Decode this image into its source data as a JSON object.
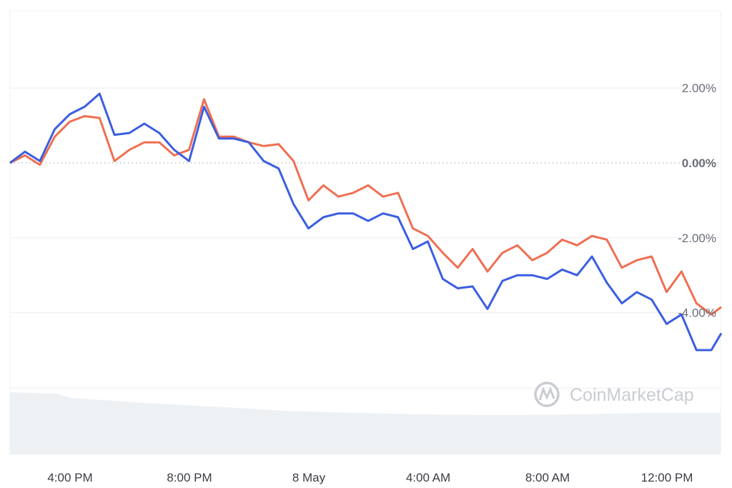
{
  "chart_data": {
    "type": "line",
    "title": "",
    "xlabel": "",
    "ylabel": "",
    "ylim": [
      -6,
      3
    ],
    "y_ticks": [
      "2.00%",
      "0.00%",
      "-2.00%",
      "-4.00%"
    ],
    "y_tick_values": [
      2,
      0,
      -2,
      -4
    ],
    "x_ticks": [
      "4:00 PM",
      "8:00 PM",
      "8 May",
      "4:00 AM",
      "8:00 AM",
      "12:00 PM"
    ],
    "grid": true,
    "zero_line": "dotted",
    "x": [
      "14:00",
      "14:30",
      "15:00",
      "15:30",
      "16:00",
      "16:30",
      "17:00",
      "17:30",
      "18:00",
      "18:30",
      "19:00",
      "19:30",
      "20:00",
      "20:30",
      "21:00",
      "21:30",
      "22:00",
      "22:30",
      "23:00",
      "23:30",
      "00:00",
      "00:30",
      "01:00",
      "01:30",
      "02:00",
      "02:30",
      "03:00",
      "03:30",
      "04:00",
      "04:30",
      "05:00",
      "05:30",
      "06:00",
      "06:30",
      "07:00",
      "07:30",
      "08:00",
      "08:30",
      "09:00",
      "09:30",
      "10:00",
      "10:30",
      "11:00",
      "11:30",
      "12:00",
      "12:30",
      "13:00",
      "13:30",
      "13:50"
    ],
    "series": [
      {
        "color": "#3b5ee0",
        "values": [
          0,
          0.3,
          0.05,
          0.9,
          1.3,
          1.5,
          1.85,
          0.75,
          0.8,
          1.05,
          0.8,
          0.35,
          0.05,
          1.5,
          0.65,
          0.65,
          0.55,
          0.05,
          -0.15,
          -1.1,
          -1.75,
          -1.45,
          -1.35,
          -1.35,
          -1.55,
          -1.35,
          -1.45,
          -2.3,
          -2.1,
          -3.1,
          -3.35,
          -3.3,
          -3.9,
          -3.15,
          -3.0,
          -3.0,
          -3.1,
          -2.85,
          -3.0,
          -2.5,
          -3.2,
          -3.75,
          -3.45,
          -3.65,
          -4.3,
          -4.05,
          -5.0,
          -5.0,
          -4.55
        ]
      },
      {
        "color": "#ef6f52",
        "values": [
          0,
          0.2,
          -0.05,
          0.7,
          1.1,
          1.25,
          1.2,
          0.05,
          0.35,
          0.55,
          0.55,
          0.2,
          0.35,
          1.7,
          0.7,
          0.7,
          0.55,
          0.45,
          0.5,
          0.05,
          -1.0,
          -0.6,
          -0.9,
          -0.8,
          -0.6,
          -0.9,
          -0.8,
          -1.75,
          -1.95,
          -2.4,
          -2.8,
          -2.3,
          -2.9,
          -2.4,
          -2.2,
          -2.6,
          -2.4,
          -2.05,
          -2.2,
          -1.95,
          -2.05,
          -2.8,
          -2.6,
          -2.5,
          -3.45,
          -2.9,
          -3.75,
          -4.05,
          -3.85
        ]
      }
    ],
    "volume_area": true
  },
  "watermark": "CoinMarketCap"
}
